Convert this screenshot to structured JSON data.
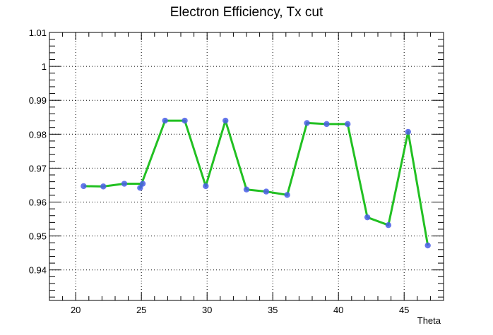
{
  "chart_data": {
    "type": "line",
    "title": "Electron Efficiency, Tx cut",
    "xlabel": "Theta",
    "ylabel": "",
    "xlim": [
      18.0,
      48.0
    ],
    "ylim": [
      0.931,
      1.01
    ],
    "xticks": [
      20,
      25,
      30,
      35,
      40,
      45
    ],
    "xtick_labels": [
      "20",
      "25",
      "30",
      "35",
      "40",
      "45"
    ],
    "yticks": [
      0.94,
      0.95,
      0.96,
      0.97,
      0.98,
      0.99,
      1.0,
      1.01
    ],
    "ytick_labels": [
      "0.94",
      "0.95",
      "0.96",
      "0.97",
      "0.98",
      "0.99",
      "1",
      "1.01"
    ],
    "grid": true,
    "line_color": "#22c022",
    "marker_color": "#4a5ee8",
    "series": [
      {
        "x": [
          20.6,
          22.1,
          23.7,
          25.1,
          24.9,
          26.8,
          28.3,
          29.9,
          31.4,
          33.0,
          34.5,
          36.1,
          37.6,
          39.1,
          40.7,
          42.2,
          43.8,
          45.3,
          46.8
        ],
        "y": [
          0.9647,
          0.9646,
          0.9654,
          0.9654,
          0.9642,
          0.984,
          0.984,
          0.9647,
          0.984,
          0.9637,
          0.9631,
          0.9621,
          0.9833,
          0.983,
          0.983,
          0.9555,
          0.9532,
          0.9807,
          0.9472
        ]
      }
    ]
  }
}
